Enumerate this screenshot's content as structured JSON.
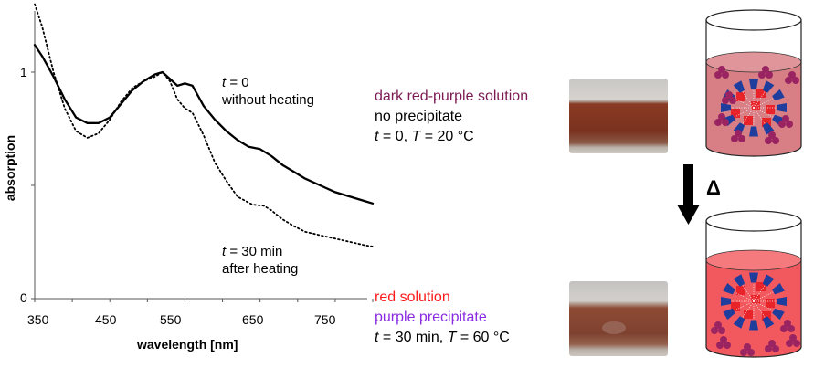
{
  "chart_data": {
    "type": "line",
    "xlabel": "wavelength [nm]",
    "ylabel": "absorption",
    "xlim": [
      350,
      800
    ],
    "ylim": [
      0,
      1.2
    ],
    "x_ticks": [
      "350",
      "450",
      "550",
      "650",
      "750"
    ],
    "y_ticks": [
      "0",
      "1"
    ],
    "grid": false,
    "series": [
      {
        "style": "solid",
        "label_line1": "t = 0",
        "label_line2": "without heating",
        "x": [
          350,
          360,
          375,
          390,
          405,
          420,
          435,
          450,
          465,
          480,
          495,
          510,
          520,
          530,
          540,
          550,
          560,
          575,
          590,
          605,
          620,
          635,
          650,
          665,
          680,
          695,
          710,
          730,
          750,
          770,
          790,
          800
        ],
        "y": [
          1.12,
          1.07,
          0.98,
          0.88,
          0.8,
          0.775,
          0.775,
          0.8,
          0.86,
          0.92,
          0.96,
          0.99,
          1.0,
          0.97,
          0.94,
          0.95,
          0.94,
          0.85,
          0.79,
          0.74,
          0.7,
          0.67,
          0.66,
          0.63,
          0.59,
          0.56,
          0.53,
          0.5,
          0.47,
          0.45,
          0.43,
          0.42
        ]
      },
      {
        "style": "dotted",
        "label_line1": "t = 30 min",
        "label_line2": "after heating",
        "x": [
          350,
          360,
          375,
          390,
          405,
          420,
          435,
          450,
          465,
          480,
          495,
          510,
          520,
          530,
          540,
          550,
          560,
          575,
          590,
          605,
          620,
          640,
          655,
          665,
          680,
          695,
          710,
          730,
          750,
          770,
          790,
          800
        ],
        "y": [
          1.3,
          1.2,
          1.0,
          0.84,
          0.74,
          0.71,
          0.73,
          0.79,
          0.87,
          0.93,
          0.96,
          0.98,
          1.0,
          0.96,
          0.88,
          0.84,
          0.82,
          0.72,
          0.6,
          0.52,
          0.45,
          0.415,
          0.41,
          0.39,
          0.35,
          0.32,
          0.295,
          0.28,
          0.265,
          0.25,
          0.235,
          0.23
        ]
      }
    ]
  },
  "annotations": {
    "t0": {
      "var": "t",
      "rest": " = 0"
    },
    "t0_sub": "without heating",
    "t30": {
      "var": "t",
      "rest": " = 30 min"
    },
    "t30_sub": "after heating"
  },
  "state_before": {
    "color_line": "dark red-purple solution",
    "line2": "no precipitate",
    "cond": {
      "t": "t",
      "t_val": " = 0,  ",
      "T": "T",
      "T_val": " = 20 °C"
    },
    "color": "#7b1a52"
  },
  "state_after": {
    "line1": "red solution",
    "line2": "purple precipitate",
    "cond": {
      "t": "t",
      "t_val": " = 30 min,  ",
      "T": "T",
      "T_val": " = 60 °C"
    },
    "color_red": "#ff1a1a",
    "color_purple": "#8a2be2"
  },
  "arrow_label": "Δ",
  "colors": {
    "liquid_before": "#d87f85",
    "liquid_after": "#f2595e",
    "cone_blue": "#1e3d9c",
    "core_red": "#e8242a",
    "bead_purple": "#9a2462",
    "photo_liquid_before": "#8a3a24",
    "photo_liquid_after": "#8d4a34"
  }
}
